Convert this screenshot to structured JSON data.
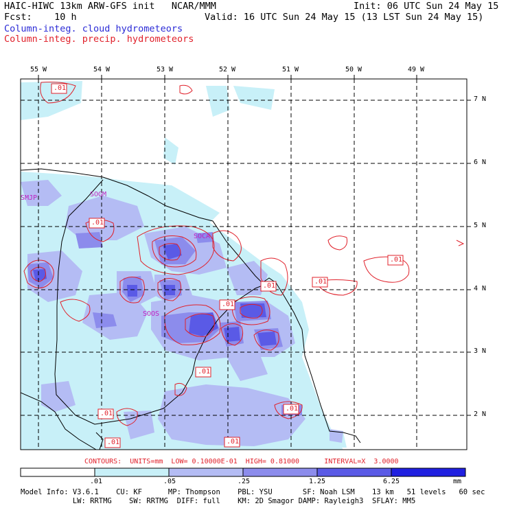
{
  "header": {
    "line1_left": "HAIC-HIWC 13km ARW-GFS init   NCAR/MMM",
    "line1_right": "Init: 06 UTC Sun 24 May 15",
    "line2_left": "Fcst:    10 h",
    "line2_right": "Valid: 16 UTC Sun 24 May 15 (13 LST Sun 24 May 15)",
    "legend_cloud": "Column-integ. cloud hydrometeors",
    "legend_precip": "Column-integ. precip. hydrometeors"
  },
  "axes": {
    "longitudes": [
      "55 W",
      "54 W",
      "53 W",
      "52 W",
      "51 W",
      "50 W",
      "49 W"
    ],
    "latitudes": [
      "7 N",
      "6 N",
      "5 N",
      "4 N",
      "3 N",
      "2 N"
    ]
  },
  "stations": [
    "SMJP",
    "SOGM",
    "SOCA",
    "SOOS"
  ],
  "contour_labels": [
    ".01",
    ".01",
    ".01",
    ".01",
    ".01",
    ".01",
    ".01",
    ".01",
    ".01",
    ".01",
    ".01"
  ],
  "contours_line": "CONTOURS:  UNITS=mm  LOW= 0.10000E-01  HIGH= 0.81000      INTERVAL=X  3.0000",
  "colorbar": {
    "labels": [
      ".01",
      ".05",
      ".25",
      "1.25",
      "6.25"
    ],
    "unit": "mm",
    "colors": [
      "#ffffff",
      "#c8f0f8",
      "#b4bcf4",
      "#8c8cec",
      "#5a5ae6",
      "#2020e0"
    ]
  },
  "model_info": {
    "line1": "Model Info: V3.6.1    CU: KF      MP: Thompson    PBL: YSU       SF: Noah LSM    13 km   51 levels   60 sec",
    "line2": "            LW: RRTMG    SW: RRTMG  DIFF: full    KM: 2D Smagor DAMP: Rayleigh3  SFLAY: MM5"
  }
}
